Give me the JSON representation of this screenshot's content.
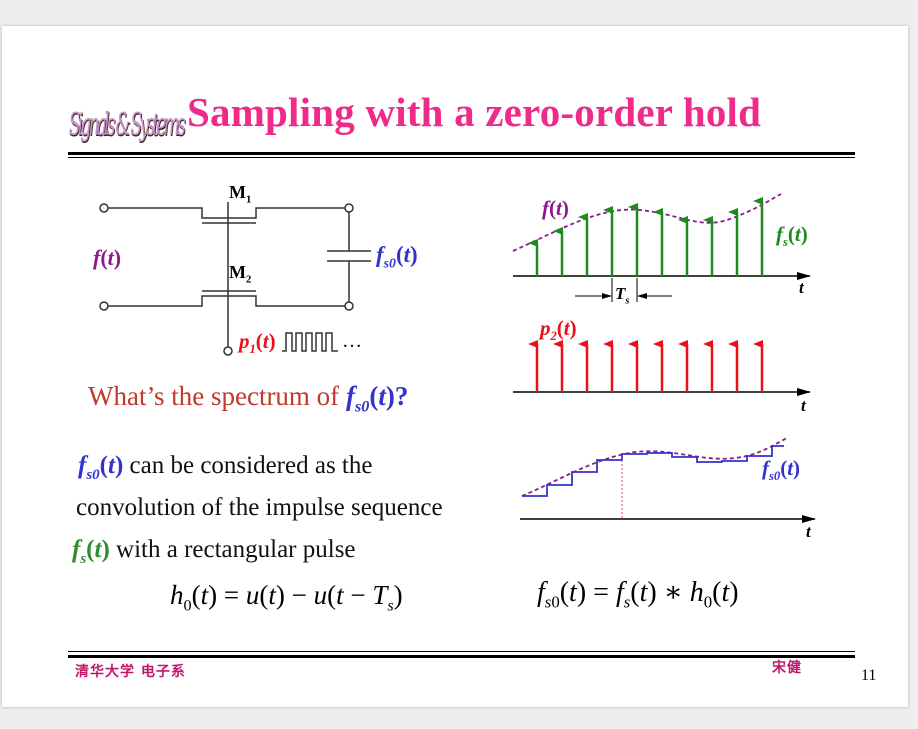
{
  "title": "Sampling with a zero-order hold",
  "logo_text": "Signals & Systems",
  "circuit": {
    "input_label": "f(t)",
    "m1_label": "M1",
    "m2_label": "M2",
    "output_label": "fs0(t)",
    "pulse_label": "p1(t)",
    "ellipsis": "…"
  },
  "plots": {
    "top": {
      "curve_label": "f(t)",
      "samples_label": "fs(t)",
      "period_label": "Ts",
      "axis_label": "t"
    },
    "middle": {
      "label": "p2(t)",
      "axis_label": "t"
    },
    "bottom": {
      "label": "fs0(t)",
      "axis_label": "t"
    }
  },
  "question": {
    "prefix": "What’s the spectrum of ",
    "func": "fs0(t)",
    "suffix": "?"
  },
  "body": {
    "line1_func": "fs0(t)",
    "line1_text": " can be considered as the",
    "line2_text": "convolution of the impulse sequence",
    "line3_func": "fs(t)",
    "line3_text": " with a rectangular pulse"
  },
  "equations": {
    "h0": "h0(t) = u(t) − u(t − Ts)",
    "fs0": "fs0(t) = fs(t) ∗ h0(t)"
  },
  "footer": {
    "institution": "清华大学 电子系",
    "author": "宋健",
    "page": "11"
  },
  "colors": {
    "title": "#ee2a8a",
    "blue": "#3333cc",
    "green": "#2e8b2e",
    "red": "#e8101a",
    "purple": "#8b1a8b",
    "question": "#c0392b"
  }
}
